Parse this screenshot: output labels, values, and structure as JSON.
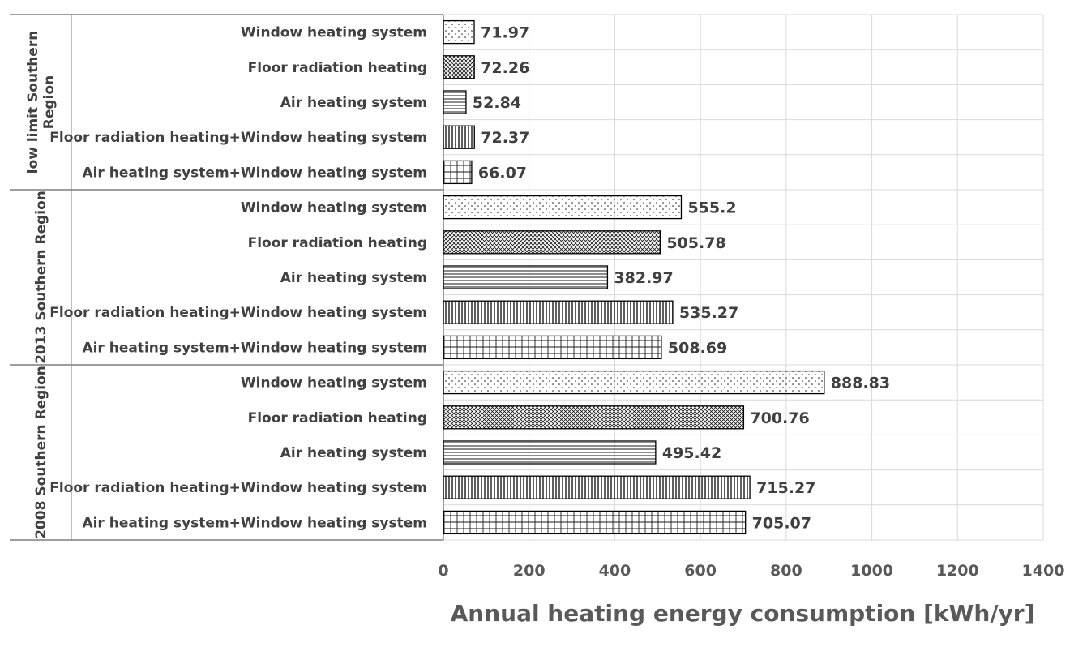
{
  "chart_data": {
    "type": "bar",
    "orientation": "horizontal",
    "title": "",
    "xlabel": "Annual heating energy consumption [kWh/yr]",
    "ylabel": "",
    "xlim": [
      0,
      1400
    ],
    "x_ticks": [
      "0",
      "200",
      "400",
      "600",
      "800",
      "1000",
      "1200",
      "1400"
    ],
    "grid": true,
    "groups": [
      {
        "name": "low limit Southern Region",
        "name_lines": [
          "low limit Southern",
          "Region"
        ],
        "bars": [
          {
            "label": "Window heating system",
            "value": 71.97,
            "display": "71.97",
            "pattern": "dots"
          },
          {
            "label": "Floor radiation heating",
            "value": 72.26,
            "display": "72.26",
            "pattern": "crosshatch"
          },
          {
            "label": "Air heating system",
            "value": 52.84,
            "display": "52.84",
            "pattern": "hlines"
          },
          {
            "label": "Floor radiation heating+Window heating system",
            "value": 72.37,
            "display": "72.37",
            "pattern": "vlines"
          },
          {
            "label": "Air heating system+Window heating system",
            "value": 66.07,
            "display": "66.07",
            "pattern": "grid"
          }
        ]
      },
      {
        "name": "2013 Southern Region",
        "name_lines": [
          "2013 Southern Region"
        ],
        "bars": [
          {
            "label": "Window heating system",
            "value": 555.2,
            "display": "555.2",
            "pattern": "dots"
          },
          {
            "label": "Floor radiation heating",
            "value": 505.78,
            "display": "505.78",
            "pattern": "crosshatch"
          },
          {
            "label": "Air heating system",
            "value": 382.97,
            "display": "382.97",
            "pattern": "hlines"
          },
          {
            "label": "Floor radiation heating+Window heating system",
            "value": 535.27,
            "display": "535.27",
            "pattern": "vlines"
          },
          {
            "label": "Air heating system+Window heating system",
            "value": 508.69,
            "display": "508.69",
            "pattern": "grid"
          }
        ]
      },
      {
        "name": "2008 Southern Region",
        "name_lines": [
          "2008 Southern Region"
        ],
        "bars": [
          {
            "label": "Window heating system",
            "value": 888.83,
            "display": "888.83",
            "pattern": "dots"
          },
          {
            "label": "Floor radiation heating",
            "value": 700.76,
            "display": "700.76",
            "pattern": "crosshatch"
          },
          {
            "label": "Air heating system",
            "value": 495.42,
            "display": "495.42",
            "pattern": "hlines"
          },
          {
            "label": "Floor radiation heating+Window heating system",
            "value": 715.27,
            "display": "715.27",
            "pattern": "vlines"
          },
          {
            "label": "Air heating system+Window heating system",
            "value": 705.07,
            "display": "705.07",
            "pattern": "grid"
          }
        ]
      }
    ]
  },
  "colors": {
    "gridline": "#d9d9d9",
    "bar_outline": "#000000",
    "pattern_ink": "#1a1a1a",
    "frame": "#7f7f7f"
  }
}
